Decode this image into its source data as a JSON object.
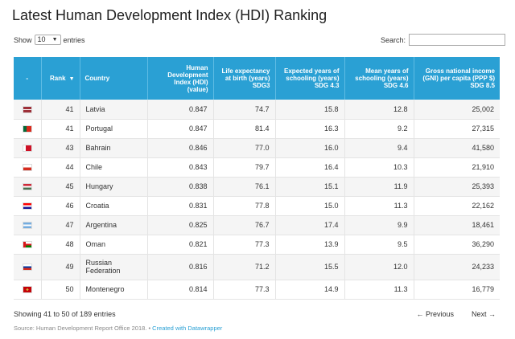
{
  "title": "Latest Human Development Index (HDI) Ranking",
  "length_menu": {
    "prefix": "Show",
    "value": "10",
    "suffix": "entries"
  },
  "search": {
    "label": "Search:",
    "value": ""
  },
  "columns": {
    "flag": "-",
    "rank": "Rank",
    "country": "Country",
    "hdi": [
      "Human",
      "Development",
      "Index (HDI)",
      "(value)"
    ],
    "life": [
      "Life expectancy",
      "at birth (years)",
      "SDG3"
    ],
    "expected": [
      "Expected years of",
      "schooling (years)",
      "SDG 4.3"
    ],
    "mean": [
      "Mean years of",
      "schooling (years)",
      "SDG 4.6"
    ],
    "gni": [
      "Gross national income",
      "(GNI) per capita (PPP $)",
      "SDG 8.5"
    ]
  },
  "rows": [
    {
      "flag": "latvia",
      "rank": "41",
      "country": "Latvia",
      "hdi": "0.847",
      "life": "74.7",
      "expected": "15.8",
      "mean": "12.8",
      "gni": "25,002"
    },
    {
      "flag": "portugal",
      "rank": "41",
      "country": "Portugal",
      "hdi": "0.847",
      "life": "81.4",
      "expected": "16.3",
      "mean": "9.2",
      "gni": "27,315"
    },
    {
      "flag": "bahrain",
      "rank": "43",
      "country": "Bahrain",
      "hdi": "0.846",
      "life": "77.0",
      "expected": "16.0",
      "mean": "9.4",
      "gni": "41,580"
    },
    {
      "flag": "chile",
      "rank": "44",
      "country": "Chile",
      "hdi": "0.843",
      "life": "79.7",
      "expected": "16.4",
      "mean": "10.3",
      "gni": "21,910"
    },
    {
      "flag": "hungary",
      "rank": "45",
      "country": "Hungary",
      "hdi": "0.838",
      "life": "76.1",
      "expected": "15.1",
      "mean": "11.9",
      "gni": "25,393"
    },
    {
      "flag": "croatia",
      "rank": "46",
      "country": "Croatia",
      "hdi": "0.831",
      "life": "77.8",
      "expected": "15.0",
      "mean": "11.3",
      "gni": "22,162"
    },
    {
      "flag": "argentina",
      "rank": "47",
      "country": "Argentina",
      "hdi": "0.825",
      "life": "76.7",
      "expected": "17.4",
      "mean": "9.9",
      "gni": "18,461"
    },
    {
      "flag": "oman",
      "rank": "48",
      "country": "Oman",
      "hdi": "0.821",
      "life": "77.3",
      "expected": "13.9",
      "mean": "9.5",
      "gni": "36,290"
    },
    {
      "flag": "russia",
      "rank": "49",
      "country": "Russian Federation",
      "hdi": "0.816",
      "life": "71.2",
      "expected": "15.5",
      "mean": "12.0",
      "gni": "24,233"
    },
    {
      "flag": "montenegro",
      "rank": "50",
      "country": "Montenegro",
      "hdi": "0.814",
      "life": "77.3",
      "expected": "14.9",
      "mean": "11.3",
      "gni": "16,779"
    }
  ],
  "info": "Showing 41 to 50 of 189 entries",
  "pager": {
    "previous": "← Previous",
    "next": "Next →"
  },
  "source": {
    "text": "Source: Human Development Report Office 2018. •",
    "link": "Created with Datawrapper"
  },
  "colors": {
    "header": "#2aa0d4"
  }
}
